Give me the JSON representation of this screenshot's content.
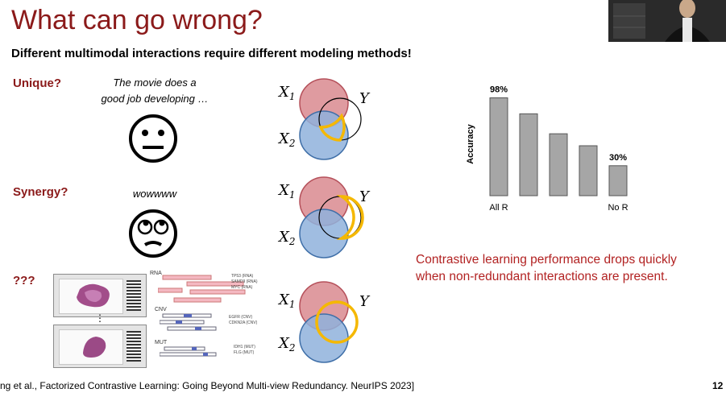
{
  "slide": {
    "title": "What can go wrong?",
    "subtitle": "Different multimodal interactions require different modeling methods!"
  },
  "rows": [
    {
      "label": "Unique?",
      "quote_line1": "The movie does a",
      "quote_line2": "good job developing …"
    },
    {
      "label": "Synergy?",
      "quote_line1": "wowwww"
    },
    {
      "label": "???"
    }
  ],
  "venn": {
    "x1_label": "X",
    "x1_sub": "1",
    "x2_label": "X",
    "x2_sub": "2",
    "y_label": "Y"
  },
  "genomics": {
    "rna_label": "RNA",
    "cnv_label": "CNV",
    "mut_label": "MUT",
    "rna_genes": [
      "TP53 (RNA)",
      "SAMD9 (RNA)",
      "MYC (RNA)"
    ],
    "cnv_genes": [
      "EGFR (CNV)",
      "CDKN2A (CNV)"
    ],
    "mut_genes": [
      "IDH1 (MUT)",
      "FLG (MUT)"
    ],
    "ellipsis": "⋮"
  },
  "chart_data": {
    "type": "bar",
    "categories": [
      "All R",
      "",
      "",
      "",
      "No R"
    ],
    "values": [
      98,
      82,
      62,
      50,
      30
    ],
    "data_labels": [
      "98%",
      "",
      "",
      "",
      "30%"
    ],
    "ylabel": "Accuracy",
    "ylim": [
      0,
      100
    ],
    "bar_color": "#a6a6a6",
    "grid": false
  },
  "conclusion": {
    "line1": "Contrastive learning performance drops quickly",
    "line2": "when non-redundant interactions are present."
  },
  "footer": {
    "citation": "ng et al., Factorized Contrastive Learning: Going Beyond Multi-view Redundancy. NeurIPS 2023]",
    "page_number": "12"
  },
  "colors": {
    "title": "#8b1a1a",
    "accent": "#b22222",
    "highlight": "#f5b800",
    "red_circle": "#d98a8f",
    "blue_circle": "#8fb1dc"
  }
}
